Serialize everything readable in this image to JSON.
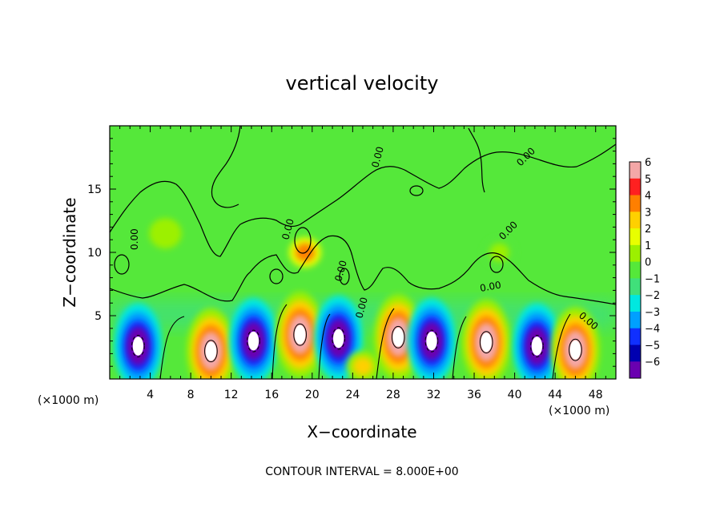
{
  "chart_data": {
    "type": "heatmap",
    "title": "vertical velocity",
    "xlabel": "X−coordinate",
    "ylabel": "Z−coordinate",
    "x_unit_left": "(×1000 m)",
    "x_unit_right": "(×1000 m)",
    "footer": "CONTOUR INTERVAL = 8.000E+00",
    "xlim": [
      0,
      50
    ],
    "ylim": [
      0,
      20
    ],
    "x_ticks": [
      4,
      8,
      12,
      16,
      20,
      24,
      28,
      32,
      36,
      40,
      44,
      48
    ],
    "y_ticks": [
      5,
      10,
      15
    ],
    "colorbar": {
      "range": [
        -6,
        6
      ],
      "ticks": [
        6,
        5,
        4,
        3,
        2,
        1,
        0,
        -1,
        -2,
        -3,
        -4,
        -5,
        -6
      ],
      "tick_labels": [
        "6",
        "5",
        "4",
        "3",
        "2",
        "1",
        "0",
        "−1",
        "−2",
        "−3",
        "−4",
        "−5",
        "−6"
      ],
      "colors": [
        "#f4a7a7",
        "#ff2020",
        "#ff7f00",
        "#ffd000",
        "#e8ff00",
        "#9cf000",
        "#55e83a",
        "#40e07a",
        "#00e8e0",
        "#00a0ff",
        "#1030ff",
        "#0000b0",
        "#6a00b0"
      ]
    },
    "contour_labels": [
      "0.00",
      "0.00",
      "0.00",
      "0.00",
      "0.00",
      "0.00",
      "0.00",
      "0.00",
      "0.00"
    ],
    "cells": [
      {
        "x": 2.8,
        "z": 2.6,
        "w": -10
      },
      {
        "x": 10.0,
        "z": 2.2,
        "w": 10
      },
      {
        "x": 14.2,
        "z": 3.0,
        "w": -9
      },
      {
        "x": 18.8,
        "z": 3.5,
        "w": 14
      },
      {
        "x": 22.6,
        "z": 3.2,
        "w": -10
      },
      {
        "x": 25.0,
        "z": 1.0,
        "w": 3
      },
      {
        "x": 28.5,
        "z": 3.3,
        "w": 11
      },
      {
        "x": 31.8,
        "z": 3.0,
        "w": -9
      },
      {
        "x": 37.2,
        "z": 2.9,
        "w": 13
      },
      {
        "x": 42.2,
        "z": 2.6,
        "w": -11
      },
      {
        "x": 46.0,
        "z": 2.3,
        "w": 11
      },
      {
        "x": 19.3,
        "z": 10.0,
        "w": 4
      },
      {
        "x": 5.5,
        "z": 11.5,
        "w": 1.2
      },
      {
        "x": 38.5,
        "z": 10.0,
        "w": 1.0
      }
    ]
  }
}
